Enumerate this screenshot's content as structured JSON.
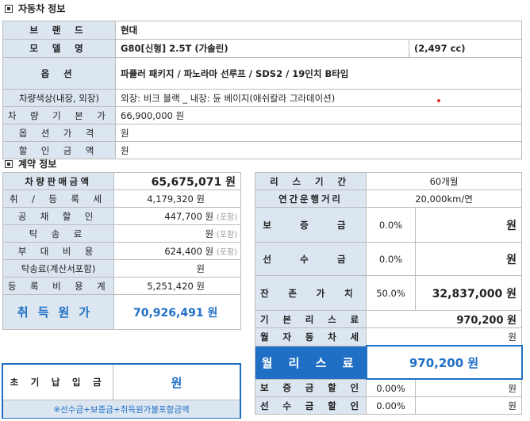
{
  "vehicle_section": {
    "title": "자동차 정보",
    "rows": [
      {
        "label": "브 랜 드",
        "value": "현대"
      },
      {
        "label": "모 델 명",
        "value": "G80[신형] 2.5T (가솔린)",
        "extra": "(2,497 cc)"
      },
      {
        "label": "옵 션",
        "value": "파퓰러 패키지 / 파노라마 선루프 / SDS2 / 19인치 B타입"
      },
      {
        "label": "차량색상(내장, 외장)",
        "value": "외장: 비크 블랙 _  내장: 듄 베이지(애쉬칼라 그라데이션)"
      },
      {
        "label": "차 량 기 본 가",
        "value": "66,900,000 원"
      },
      {
        "label": "옵 션 가 격",
        "value": "원"
      },
      {
        "label": "할 인 금 액",
        "value": "원"
      }
    ]
  },
  "contract_section": {
    "title": "계약 정보",
    "left_rows": [
      {
        "label": "차량판매금액",
        "value": "65,675,071 원",
        "note": ""
      },
      {
        "label": "취 / 등 록 세",
        "value": "4,179,320 원",
        "note": ""
      },
      {
        "label": "공 채 할 인",
        "value": "447,700 원",
        "note": "(포함)"
      },
      {
        "label": "탁 송 료",
        "value": "원",
        "note": "(포함)"
      },
      {
        "label": "부 대 비 용",
        "value": "624,400 원",
        "note": "(포함)"
      },
      {
        "label": "탁송료(계산서포함)",
        "value": "원",
        "note": ""
      },
      {
        "label": "등 록 비 용 계",
        "value": "5,251,420 원",
        "note": ""
      }
    ],
    "acquisition": {
      "label": "취득원가",
      "value": "70,926,491 원"
    },
    "right_rows": [
      {
        "label": "리 스 기 간",
        "value": "60개월"
      },
      {
        "label": "연간운행거리",
        "value": "20,000km/연"
      },
      {
        "label": "보 증 금",
        "pct": "0.0%",
        "value": "원"
      },
      {
        "label": "선 수 금",
        "pct": "0.0%",
        "value": "원"
      },
      {
        "label": "잔 존 가 치",
        "pct": "50.0%",
        "value": "32,837,000 원"
      },
      {
        "label": "기 본 리 스 료",
        "value": "970,200 원"
      },
      {
        "label": "월 자 동 차 세",
        "value": "원"
      }
    ],
    "monthly_lease": {
      "label": "월 리 스 료",
      "value": "970,200 원"
    },
    "discount_rows": [
      {
        "label": "보 증 금 할 인",
        "pct": "0.00%",
        "value": "원"
      },
      {
        "label": "선 수 금 할 인",
        "pct": "0.00%",
        "value": "원"
      }
    ],
    "initial_payment": {
      "label": "초 기 납 입 금",
      "value": "원",
      "note": "※선수금+보증금+취득원가불포함금액"
    }
  },
  "colors": {
    "label_bg": "#dce6f1",
    "accent_blue": "#1f6fc5",
    "border": "#bcbcbc"
  }
}
